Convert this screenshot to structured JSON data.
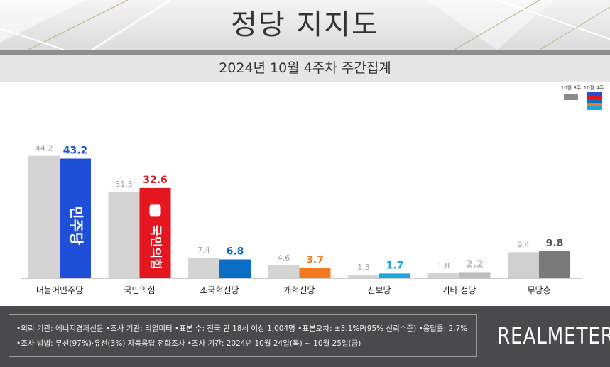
{
  "header": {
    "title": "정당 지지도",
    "subtitle": "2024년 10월 4주차 주간집계"
  },
  "colors": {
    "prev": "#d4d4d4",
    "democratic": "#1f4fd8",
    "ppp": "#e4161f",
    "rebuilding": "#0a6ec4",
    "reform": "#f47a20",
    "progressive": "#19a7e0",
    "other": "#bdbdbd",
    "none": "#7a7a7a"
  },
  "chart_data": {
    "type": "bar",
    "categories": [
      "더불어민주당",
      "국민의힘",
      "조국혁신당",
      "개혁신당",
      "진보당",
      "기타 정당",
      "무당층"
    ],
    "series": [
      {
        "name": "10월 3주",
        "values": [
          44.2,
          31.3,
          7.4,
          4.6,
          1.3,
          1.8,
          9.4
        ]
      },
      {
        "name": "10월 4주",
        "values": [
          43.2,
          32.6,
          6.8,
          3.7,
          1.7,
          2.2,
          9.8
        ]
      }
    ],
    "ylim": [
      0,
      50
    ],
    "grid": false,
    "legend": "top-right",
    "bar_logos": [
      "민주당",
      "국민의힘"
    ],
    "title": "",
    "xlabel": "",
    "ylabel": ""
  },
  "footer": {
    "line1": "•의뢰 기관: 에너지경제신문 •조사 기관: 리얼미터 •표본 수: 전국 만 18세 이상 1,004명 •표본오차: ±3.1%P(95% 신뢰수준) •응답률: 2.7%",
    "line2": "•조사 방법: 무선(97%)·유선(3%) 자동응답 전화조사 •조사 기간: 2024년 10월 24일(목) ~ 10월 25일(금)",
    "brand": "REALMETER"
  }
}
